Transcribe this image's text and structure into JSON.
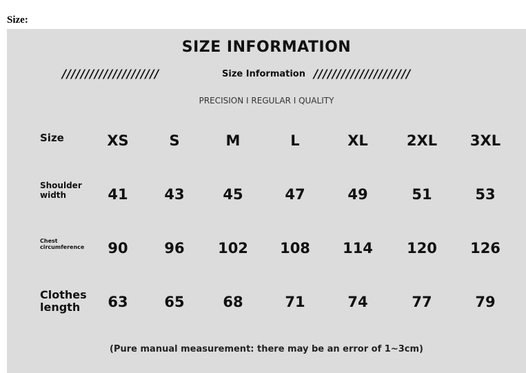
{
  "page_label": "Size:",
  "chart": {
    "title": "SIZE INFORMATION",
    "subtitle": "Size Information",
    "stripe": "/////////////////////",
    "tagline": "PRECISION  I  REGULAR  I  QUALITY",
    "note": "(Pure manual measurement: there may be an error of 1~3cm)",
    "header_label": "Size",
    "sizes": [
      "XS",
      "S",
      "M",
      "L",
      "XL",
      "2XL",
      "3XL"
    ],
    "rows": [
      {
        "label": "Shoulder width",
        "values": [
          "41",
          "43",
          "45",
          "47",
          "49",
          "51",
          "53"
        ]
      },
      {
        "label": "Chest circumference",
        "values": [
          "90",
          "96",
          "102",
          "108",
          "114",
          "120",
          "126"
        ]
      },
      {
        "label": "Clothes length",
        "values": [
          "63",
          "65",
          "68",
          "71",
          "74",
          "77",
          "79"
        ]
      }
    ]
  }
}
